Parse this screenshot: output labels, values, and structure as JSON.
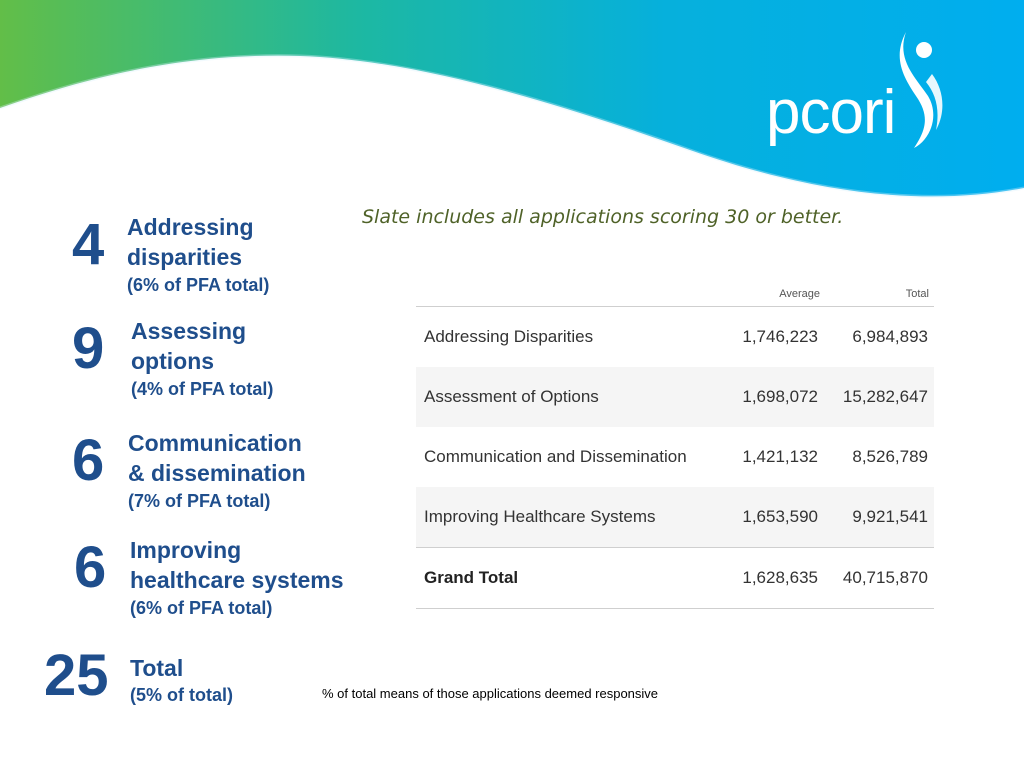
{
  "logo": {
    "text": "pcori"
  },
  "subtitle": "Slate includes all applications scoring 30 or better.",
  "stats": [
    {
      "number": "4",
      "label_lines": [
        "Addressing",
        "disparities"
      ],
      "pct": "(6% of PFA total)"
    },
    {
      "number": "9",
      "label_lines": [
        "Assessing",
        "options"
      ],
      "pct": "(4% of PFA total)"
    },
    {
      "number": "6",
      "label_lines": [
        "Communication",
        "& dissemination"
      ],
      "pct": "(7% of PFA total)"
    },
    {
      "number": "6",
      "label_lines": [
        "Improving",
        "healthcare systems"
      ],
      "pct": "(6% of PFA total)"
    },
    {
      "number": "25",
      "label_lines": [
        "Total"
      ],
      "pct": "(5% of total)"
    }
  ],
  "table": {
    "columns": [
      "Average",
      "Total"
    ],
    "rows": [
      {
        "name": "Addressing Disparities",
        "average": "1,746,223",
        "total": "6,984,893"
      },
      {
        "name": "Assessment of Options",
        "average": "1,698,072",
        "total": "15,282,647"
      },
      {
        "name": "Communication and Dissemination",
        "average": "1,421,132",
        "total": "8,526,789"
      },
      {
        "name": "Improving Healthcare Systems",
        "average": "1,653,590",
        "total": "9,921,541"
      }
    ],
    "grand_total": {
      "name": "Grand Total",
      "average": "1,628,635",
      "total": "40,715,870"
    }
  },
  "footnote": "% of total means of those applications deemed responsive",
  "colors": {
    "accent": "#1f4e8c",
    "subtitle": "#4f6228",
    "wave_green": "#6cc04a",
    "wave_blue": "#00aeef"
  }
}
